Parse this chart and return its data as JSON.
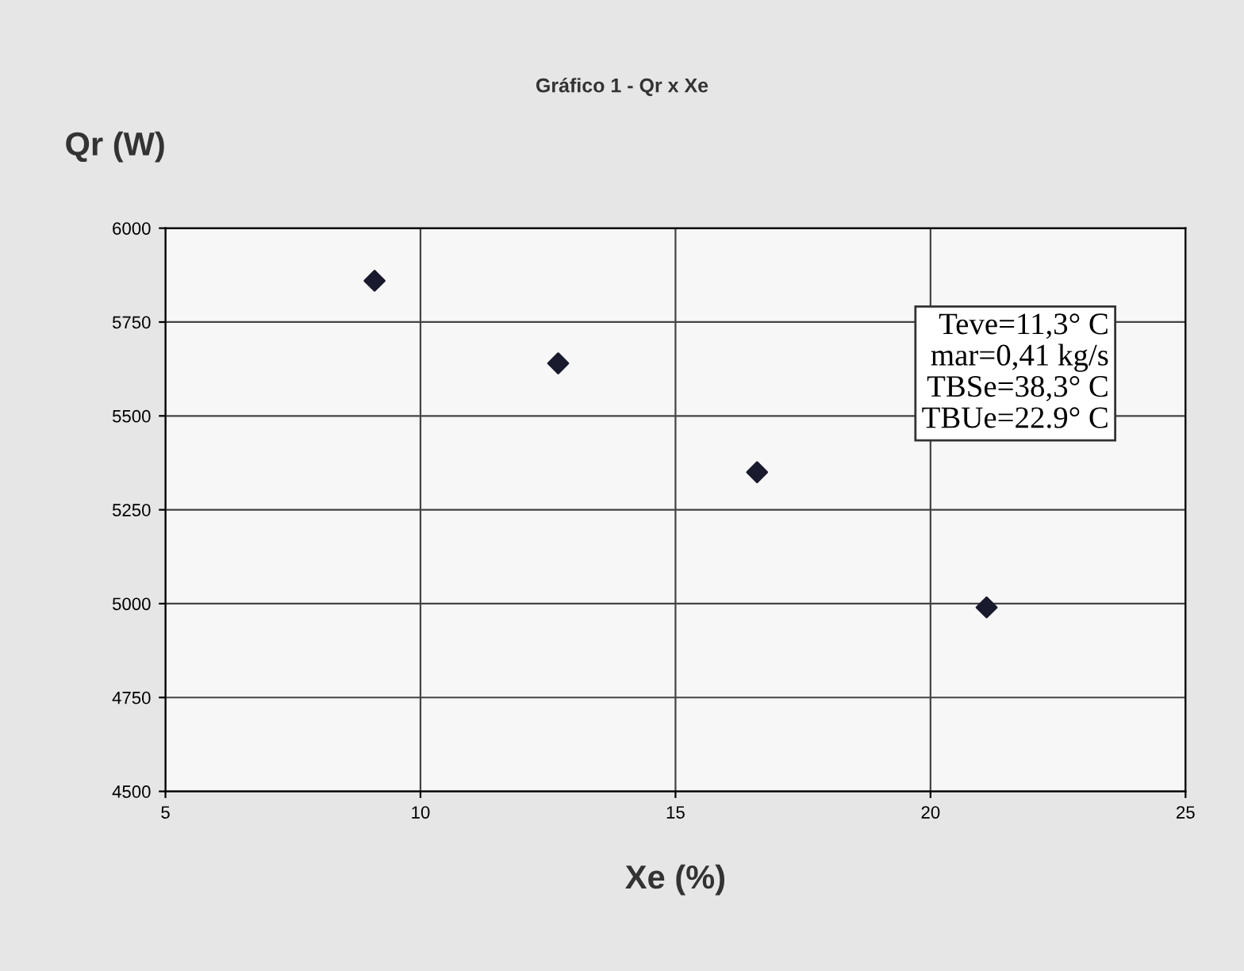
{
  "chart_data": {
    "type": "scatter",
    "title": "Gráfico 1 - Qr x Xe",
    "xlabel": "Xe (%)",
    "ylabel": "Qr (W)",
    "x": [
      9.1,
      12.7,
      16.6,
      21.1
    ],
    "series": [
      {
        "color": "#1a1a2e",
        "values": [
          5860,
          5640,
          5350,
          4990
        ]
      }
    ],
    "xlim": [
      5,
      25
    ],
    "xticks": [
      5,
      10,
      15,
      20,
      25
    ],
    "ylim": [
      4500,
      6000
    ],
    "yticks": [
      4500,
      4750,
      5000,
      5250,
      5500,
      5750,
      6000
    ],
    "grid": true,
    "marker": "diamond",
    "annotations": [
      "Teve=11,3° C\nmar=0,41 kg/s\nTBSe=38,3° C\nTBUe=22.9° C"
    ]
  }
}
